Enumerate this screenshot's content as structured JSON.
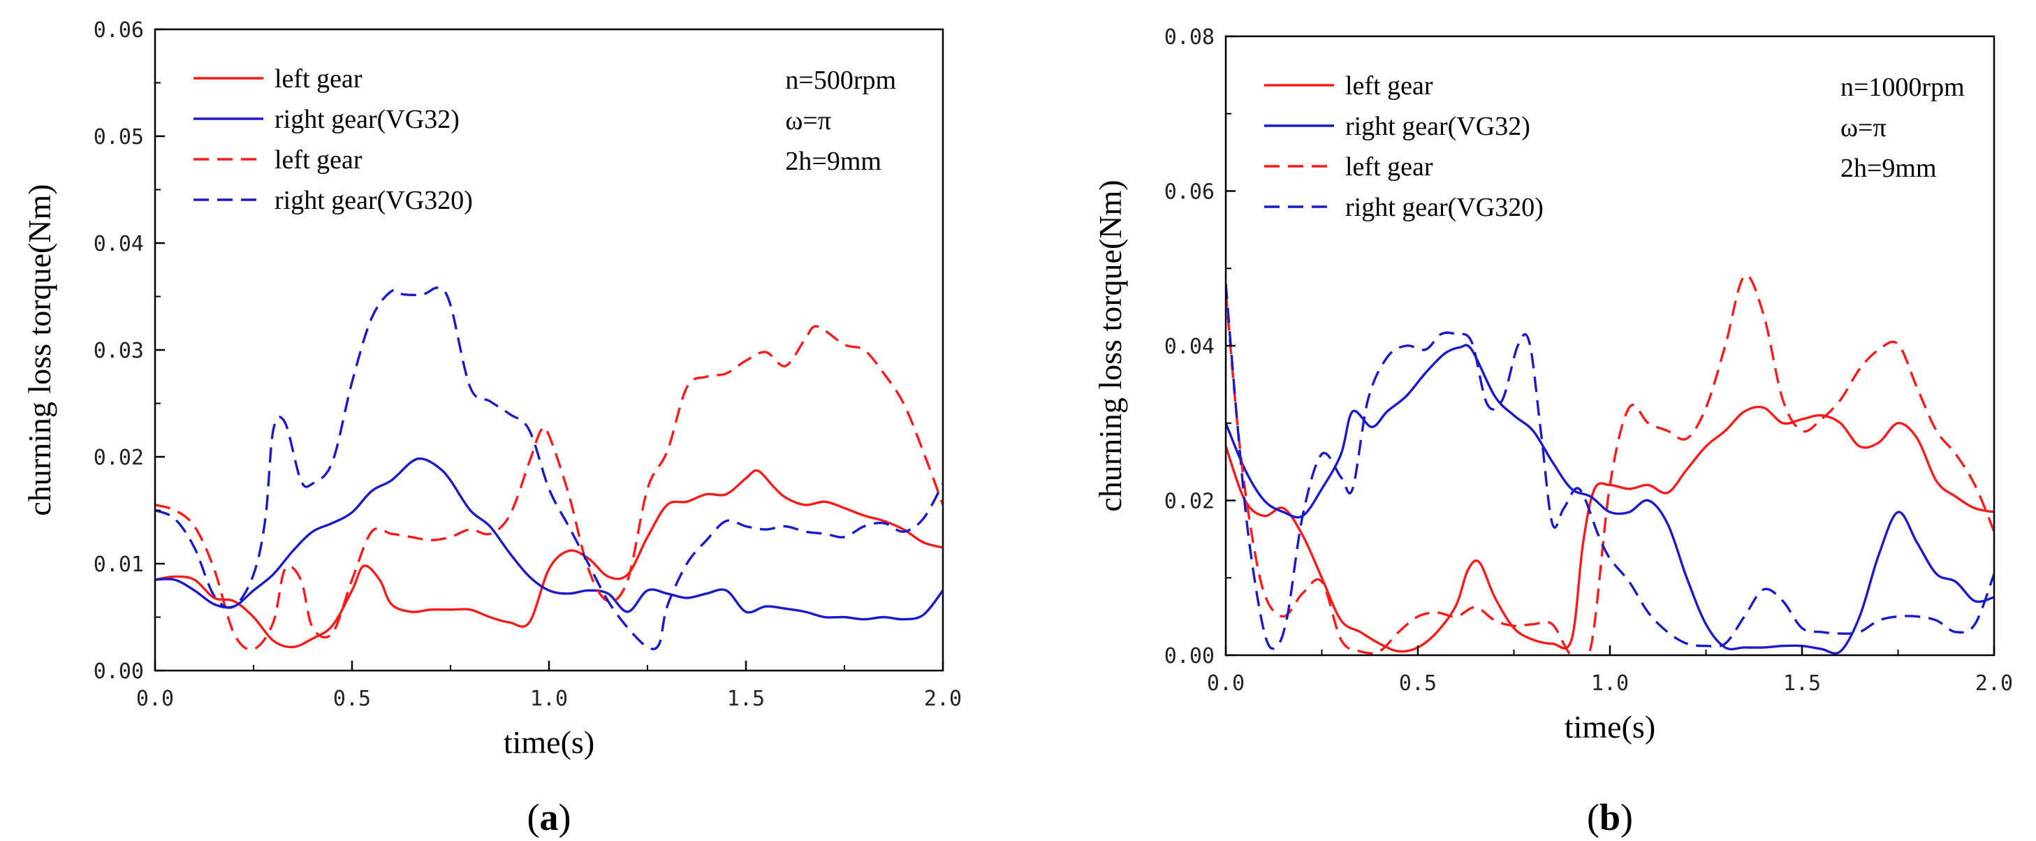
{
  "chart_data": [
    {
      "type": "line",
      "panel_label": "(a)",
      "panel_letter": "a",
      "xlabel": "time(s)",
      "ylabel": "churning loss torque(Nm)",
      "xlim": [
        0,
        2.0
      ],
      "ylim": [
        0,
        0.06
      ],
      "x_ticks": [
        0,
        0.5,
        1.0,
        1.5,
        2.0
      ],
      "x_tick_labels": [
        "0.0",
        "0.5",
        "1.0",
        "1.5",
        "2.0"
      ],
      "y_ticks": [
        0,
        0.01,
        0.02,
        0.03,
        0.04,
        0.05,
        0.06
      ],
      "y_tick_labels": [
        "0.00",
        "0.01",
        "0.02",
        "0.03",
        "0.04",
        "0.05",
        "0.06"
      ],
      "annotations": [
        "n=500rpm",
        "ω=π",
        "2h=9mm"
      ],
      "legend_position": "top-left",
      "series": [
        {
          "name": "left gear",
          "color": "#ff1a1a",
          "dash": "solid",
          "x": [
            0,
            0.05,
            0.1,
            0.15,
            0.2,
            0.25,
            0.3,
            0.35,
            0.4,
            0.45,
            0.5,
            0.53,
            0.57,
            0.6,
            0.65,
            0.7,
            0.75,
            0.8,
            0.85,
            0.9,
            0.95,
            1.0,
            1.05,
            1.1,
            1.15,
            1.2,
            1.25,
            1.3,
            1.35,
            1.4,
            1.45,
            1.5,
            1.53,
            1.57,
            1.6,
            1.65,
            1.7,
            1.75,
            1.8,
            1.85,
            1.9,
            1.95,
            2.0
          ],
          "y": [
            0.0085,
            0.0088,
            0.0085,
            0.0068,
            0.0065,
            0.005,
            0.0028,
            0.0022,
            0.003,
            0.0042,
            0.0075,
            0.0098,
            0.0085,
            0.0062,
            0.0055,
            0.0057,
            0.0057,
            0.0057,
            0.005,
            0.0045,
            0.0045,
            0.0095,
            0.0112,
            0.0105,
            0.0088,
            0.009,
            0.0125,
            0.0155,
            0.0158,
            0.0165,
            0.0165,
            0.018,
            0.0187,
            0.0172,
            0.0162,
            0.0155,
            0.0158,
            0.0152,
            0.0145,
            0.014,
            0.0132,
            0.012,
            0.0115
          ]
        },
        {
          "name": "right gear(VG32)",
          "color": "#1a1acc",
          "dash": "solid",
          "x": [
            0,
            0.05,
            0.1,
            0.15,
            0.2,
            0.25,
            0.3,
            0.35,
            0.4,
            0.45,
            0.5,
            0.55,
            0.6,
            0.65,
            0.68,
            0.72,
            0.75,
            0.8,
            0.85,
            0.9,
            0.95,
            1.0,
            1.05,
            1.1,
            1.15,
            1.2,
            1.25,
            1.3,
            1.35,
            1.4,
            1.45,
            1.5,
            1.55,
            1.6,
            1.65,
            1.7,
            1.75,
            1.8,
            1.85,
            1.9,
            1.95,
            2.0
          ],
          "y": [
            0.0085,
            0.0085,
            0.0075,
            0.0062,
            0.006,
            0.0075,
            0.009,
            0.0112,
            0.013,
            0.0138,
            0.0148,
            0.0168,
            0.0178,
            0.0195,
            0.0198,
            0.019,
            0.0178,
            0.015,
            0.0135,
            0.011,
            0.0088,
            0.0075,
            0.0072,
            0.0075,
            0.0072,
            0.0055,
            0.0075,
            0.0072,
            0.0068,
            0.0072,
            0.0075,
            0.0055,
            0.006,
            0.0058,
            0.0055,
            0.005,
            0.005,
            0.0048,
            0.005,
            0.0048,
            0.0052,
            0.0075
          ]
        },
        {
          "name": "left gear",
          "color": "#ff1a1a",
          "dash": "dashed",
          "x": [
            0,
            0.05,
            0.1,
            0.15,
            0.2,
            0.25,
            0.3,
            0.33,
            0.37,
            0.4,
            0.45,
            0.5,
            0.55,
            0.6,
            0.65,
            0.7,
            0.75,
            0.8,
            0.85,
            0.9,
            0.95,
            0.98,
            1.0,
            1.05,
            1.1,
            1.15,
            1.2,
            1.25,
            1.3,
            1.35,
            1.4,
            1.45,
            1.5,
            1.55,
            1.6,
            1.65,
            1.68,
            1.75,
            1.8,
            1.85,
            1.9,
            1.95,
            2.0
          ],
          "y": [
            0.0155,
            0.015,
            0.0135,
            0.0095,
            0.0035,
            0.002,
            0.0045,
            0.0095,
            0.0085,
            0.004,
            0.0035,
            0.0085,
            0.013,
            0.0128,
            0.0125,
            0.0122,
            0.0125,
            0.0132,
            0.0128,
            0.0145,
            0.0195,
            0.0225,
            0.022,
            0.0165,
            0.0095,
            0.0065,
            0.0085,
            0.017,
            0.0205,
            0.0265,
            0.0275,
            0.0278,
            0.029,
            0.0298,
            0.0285,
            0.031,
            0.0322,
            0.0305,
            0.03,
            0.0278,
            0.025,
            0.0205,
            0.0155
          ]
        },
        {
          "name": "right gear(VG320)",
          "color": "#1a1acc",
          "dash": "dashed",
          "x": [
            0,
            0.05,
            0.1,
            0.15,
            0.2,
            0.25,
            0.28,
            0.3,
            0.33,
            0.37,
            0.4,
            0.45,
            0.5,
            0.55,
            0.6,
            0.63,
            0.68,
            0.72,
            0.75,
            0.8,
            0.85,
            0.9,
            0.95,
            1.0,
            1.05,
            1.1,
            1.15,
            1.2,
            1.25,
            1.28,
            1.3,
            1.35,
            1.4,
            1.45,
            1.5,
            1.55,
            1.6,
            1.65,
            1.7,
            1.75,
            1.8,
            1.85,
            1.9,
            1.95,
            2.0
          ],
          "y": [
            0.015,
            0.0142,
            0.0115,
            0.007,
            0.006,
            0.009,
            0.0142,
            0.0225,
            0.0232,
            0.0178,
            0.0175,
            0.0195,
            0.027,
            0.033,
            0.0355,
            0.0352,
            0.0352,
            0.0358,
            0.0342,
            0.0265,
            0.0252,
            0.024,
            0.0225,
            0.017,
            0.0135,
            0.01,
            0.0065,
            0.004,
            0.0022,
            0.0025,
            0.006,
            0.01,
            0.0122,
            0.014,
            0.0135,
            0.0132,
            0.0135,
            0.013,
            0.0128,
            0.0125,
            0.0135,
            0.0138,
            0.013,
            0.0142,
            0.0175
          ]
        }
      ]
    },
    {
      "type": "line",
      "panel_label": "(b)",
      "panel_letter": "b",
      "xlabel": "time(s)",
      "ylabel": "churning loss torque(Nm)",
      "xlim": [
        0,
        2.0
      ],
      "ylim": [
        0,
        0.08
      ],
      "x_ticks": [
        0,
        0.5,
        1.0,
        1.5,
        2.0
      ],
      "x_tick_labels": [
        "0.0",
        "0.5",
        "1.0",
        "1.5",
        "2.0"
      ],
      "y_ticks": [
        0,
        0.02,
        0.04,
        0.06,
        0.08
      ],
      "y_tick_labels": [
        "0.00",
        "0.02",
        "0.04",
        "0.06",
        "0.08"
      ],
      "annotations": [
        "n=1000rpm",
        "ω=π",
        "2h=9mm"
      ],
      "legend_position": "top-left",
      "series": [
        {
          "name": " left gear",
          "color": "#ff1a1a",
          "dash": "solid",
          "x": [
            0,
            0.05,
            0.1,
            0.15,
            0.2,
            0.25,
            0.3,
            0.35,
            0.4,
            0.45,
            0.5,
            0.55,
            0.6,
            0.63,
            0.66,
            0.7,
            0.75,
            0.8,
            0.85,
            0.9,
            0.93,
            0.96,
            1.0,
            1.05,
            1.1,
            1.15,
            1.2,
            1.25,
            1.3,
            1.35,
            1.4,
            1.45,
            1.5,
            1.55,
            1.6,
            1.65,
            1.7,
            1.75,
            1.8,
            1.85,
            1.9,
            1.95,
            2.0
          ],
          "y": [
            0.027,
            0.02,
            0.018,
            0.019,
            0.0155,
            0.01,
            0.0045,
            0.003,
            0.0015,
            0.0005,
            0.001,
            0.003,
            0.0065,
            0.011,
            0.012,
            0.0075,
            0.0035,
            0.002,
            0.0015,
            0.002,
            0.0145,
            0.0215,
            0.022,
            0.0215,
            0.022,
            0.021,
            0.024,
            0.027,
            0.029,
            0.0315,
            0.032,
            0.03,
            0.0305,
            0.031,
            0.03,
            0.027,
            0.0275,
            0.03,
            0.028,
            0.0225,
            0.0205,
            0.019,
            0.0185
          ]
        },
        {
          "name": "right gear(VG32)",
          "color": "#1a1acc",
          "dash": "solid",
          "x": [
            0,
            0.05,
            0.1,
            0.15,
            0.2,
            0.25,
            0.3,
            0.33,
            0.38,
            0.42,
            0.47,
            0.52,
            0.57,
            0.61,
            0.64,
            0.7,
            0.75,
            0.8,
            0.85,
            0.9,
            0.95,
            1.0,
            1.05,
            1.1,
            1.15,
            1.2,
            1.25,
            1.3,
            1.35,
            1.4,
            1.45,
            1.5,
            1.55,
            1.6,
            1.65,
            1.7,
            1.75,
            1.8,
            1.85,
            1.9,
            1.95,
            2.0
          ],
          "y": [
            0.03,
            0.024,
            0.02,
            0.0185,
            0.018,
            0.0215,
            0.026,
            0.0315,
            0.0295,
            0.0315,
            0.0335,
            0.0365,
            0.039,
            0.0398,
            0.0395,
            0.0335,
            0.031,
            0.029,
            0.025,
            0.0215,
            0.0205,
            0.0185,
            0.0185,
            0.02,
            0.017,
            0.01,
            0.004,
            0.001,
            0.001,
            0.001,
            0.0012,
            0.0012,
            0.0008,
            0.0005,
            0.005,
            0.013,
            0.0185,
            0.0145,
            0.0105,
            0.0095,
            0.007,
            0.0075
          ]
        },
        {
          "name": "left gear",
          "color": "#ff1a1a",
          "dash": "dashed",
          "x": [
            0,
            0.03,
            0.06,
            0.1,
            0.15,
            0.2,
            0.25,
            0.3,
            0.35,
            0.4,
            0.45,
            0.5,
            0.55,
            0.6,
            0.65,
            0.7,
            0.75,
            0.8,
            0.85,
            0.9,
            0.95,
            1.0,
            1.05,
            1.1,
            1.15,
            1.2,
            1.25,
            1.3,
            1.35,
            1.4,
            1.45,
            1.5,
            1.55,
            1.6,
            1.65,
            1.7,
            1.75,
            1.8,
            1.85,
            1.9,
            1.95,
            2.0
          ],
          "y": [
            0.047,
            0.03,
            0.018,
            0.008,
            0.005,
            0.008,
            0.0095,
            0.002,
            0.0005,
            0.0005,
            0.003,
            0.005,
            0.0055,
            0.005,
            0.0062,
            0.0045,
            0.0038,
            0.004,
            0.004,
            0,
            0.001,
            0.022,
            0.032,
            0.03,
            0.029,
            0.028,
            0.032,
            0.04,
            0.049,
            0.044,
            0.033,
            0.029,
            0.0305,
            0.033,
            0.037,
            0.0395,
            0.0402,
            0.0345,
            0.029,
            0.026,
            0.022,
            0.016
          ]
        },
        {
          "name": "right gear(VG320)",
          "color": "#1a1acc",
          "dash": "dashed",
          "x": [
            0,
            0.03,
            0.06,
            0.1,
            0.13,
            0.16,
            0.2,
            0.25,
            0.3,
            0.33,
            0.37,
            0.42,
            0.47,
            0.52,
            0.56,
            0.6,
            0.64,
            0.68,
            0.72,
            0.76,
            0.79,
            0.82,
            0.85,
            0.88,
            0.92,
            0.97,
            1.0,
            1.05,
            1.1,
            1.15,
            1.2,
            1.25,
            1.3,
            1.35,
            1.4,
            1.45,
            1.5,
            1.55,
            1.6,
            1.65,
            1.7,
            1.75,
            1.8,
            1.85,
            1.9,
            1.95,
            2.0
          ],
          "y": [
            0.048,
            0.03,
            0.015,
            0.003,
            0.001,
            0.005,
            0.018,
            0.026,
            0.023,
            0.0215,
            0.033,
            0.0385,
            0.04,
            0.0395,
            0.0415,
            0.0415,
            0.0405,
            0.0325,
            0.033,
            0.04,
            0.0405,
            0.029,
            0.017,
            0.019,
            0.0215,
            0.0155,
            0.0125,
            0.0095,
            0.0055,
            0.003,
            0.0015,
            0.0012,
            0.0015,
            0.005,
            0.0085,
            0.007,
            0.0035,
            0.003,
            0.0028,
            0.003,
            0.0045,
            0.005,
            0.005,
            0.0045,
            0.003,
            0.004,
            0.0105
          ]
        }
      ]
    }
  ]
}
